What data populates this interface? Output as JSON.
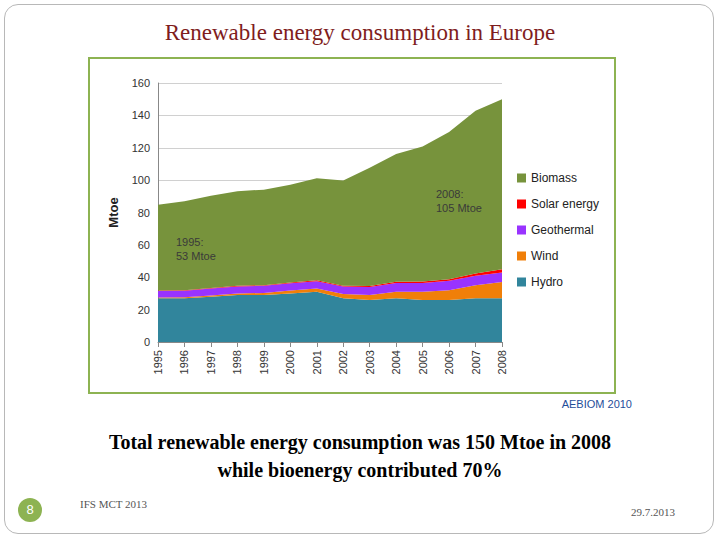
{
  "title": "Renewable energy consumption in Europe",
  "source": "AEBIOM 2010",
  "caption": "Total renewable energy consumption was 150 Mtoe in 2008 while bioenergy contributed 70%",
  "footer": {
    "page": 8,
    "left": "IFS MCT 2013",
    "right": "29.7.2013"
  },
  "chart_data": {
    "type": "area",
    "stacked": true,
    "y_label": "Mtoe",
    "categories": [
      "1995",
      "1996",
      "1997",
      "1998",
      "1999",
      "2000",
      "2001",
      "2002",
      "2003",
      "2004",
      "2005",
      "2006",
      "2007",
      "2008"
    ],
    "series": [
      {
        "name": "Hydro",
        "color": "#31859c",
        "values": [
          27,
          27,
          28,
          29,
          29,
          30,
          31,
          27,
          26,
          27,
          26,
          26,
          27,
          27
        ]
      },
      {
        "name": "Wind",
        "color": "#f07f09",
        "values": [
          0.5,
          0.6,
          0.8,
          1,
          1.3,
          1.8,
          2,
          2.6,
          3,
          4,
          5,
          6,
          8,
          10
        ]
      },
      {
        "name": "Geothermal",
        "color": "#9933ff",
        "values": [
          4,
          4,
          4.2,
          4.3,
          4.4,
          4.5,
          4.6,
          4.7,
          5,
          5.5,
          5.5,
          5.8,
          6,
          6
        ]
      },
      {
        "name": "Solar energy",
        "color": "#ff0000",
        "values": [
          0.3,
          0.3,
          0.3,
          0.4,
          0.4,
          0.4,
          0.5,
          0.5,
          0.6,
          0.7,
          0.8,
          1,
          1.3,
          2
        ]
      },
      {
        "name": "Biomass",
        "color": "#77933c",
        "values": [
          53,
          55,
          57,
          58.5,
          59,
          60.5,
          63,
          65,
          73,
          79,
          83.5,
          91,
          100.5,
          105
        ]
      }
    ],
    "annotations": [
      "2008:\n105 Mtoe",
      "1995:\n53 Mtoe"
    ],
    "ylim": [
      0,
      160
    ],
    "yticks": [
      0,
      20,
      40,
      60,
      80,
      100,
      120,
      140,
      160
    ],
    "grid": true,
    "legend": "right"
  }
}
